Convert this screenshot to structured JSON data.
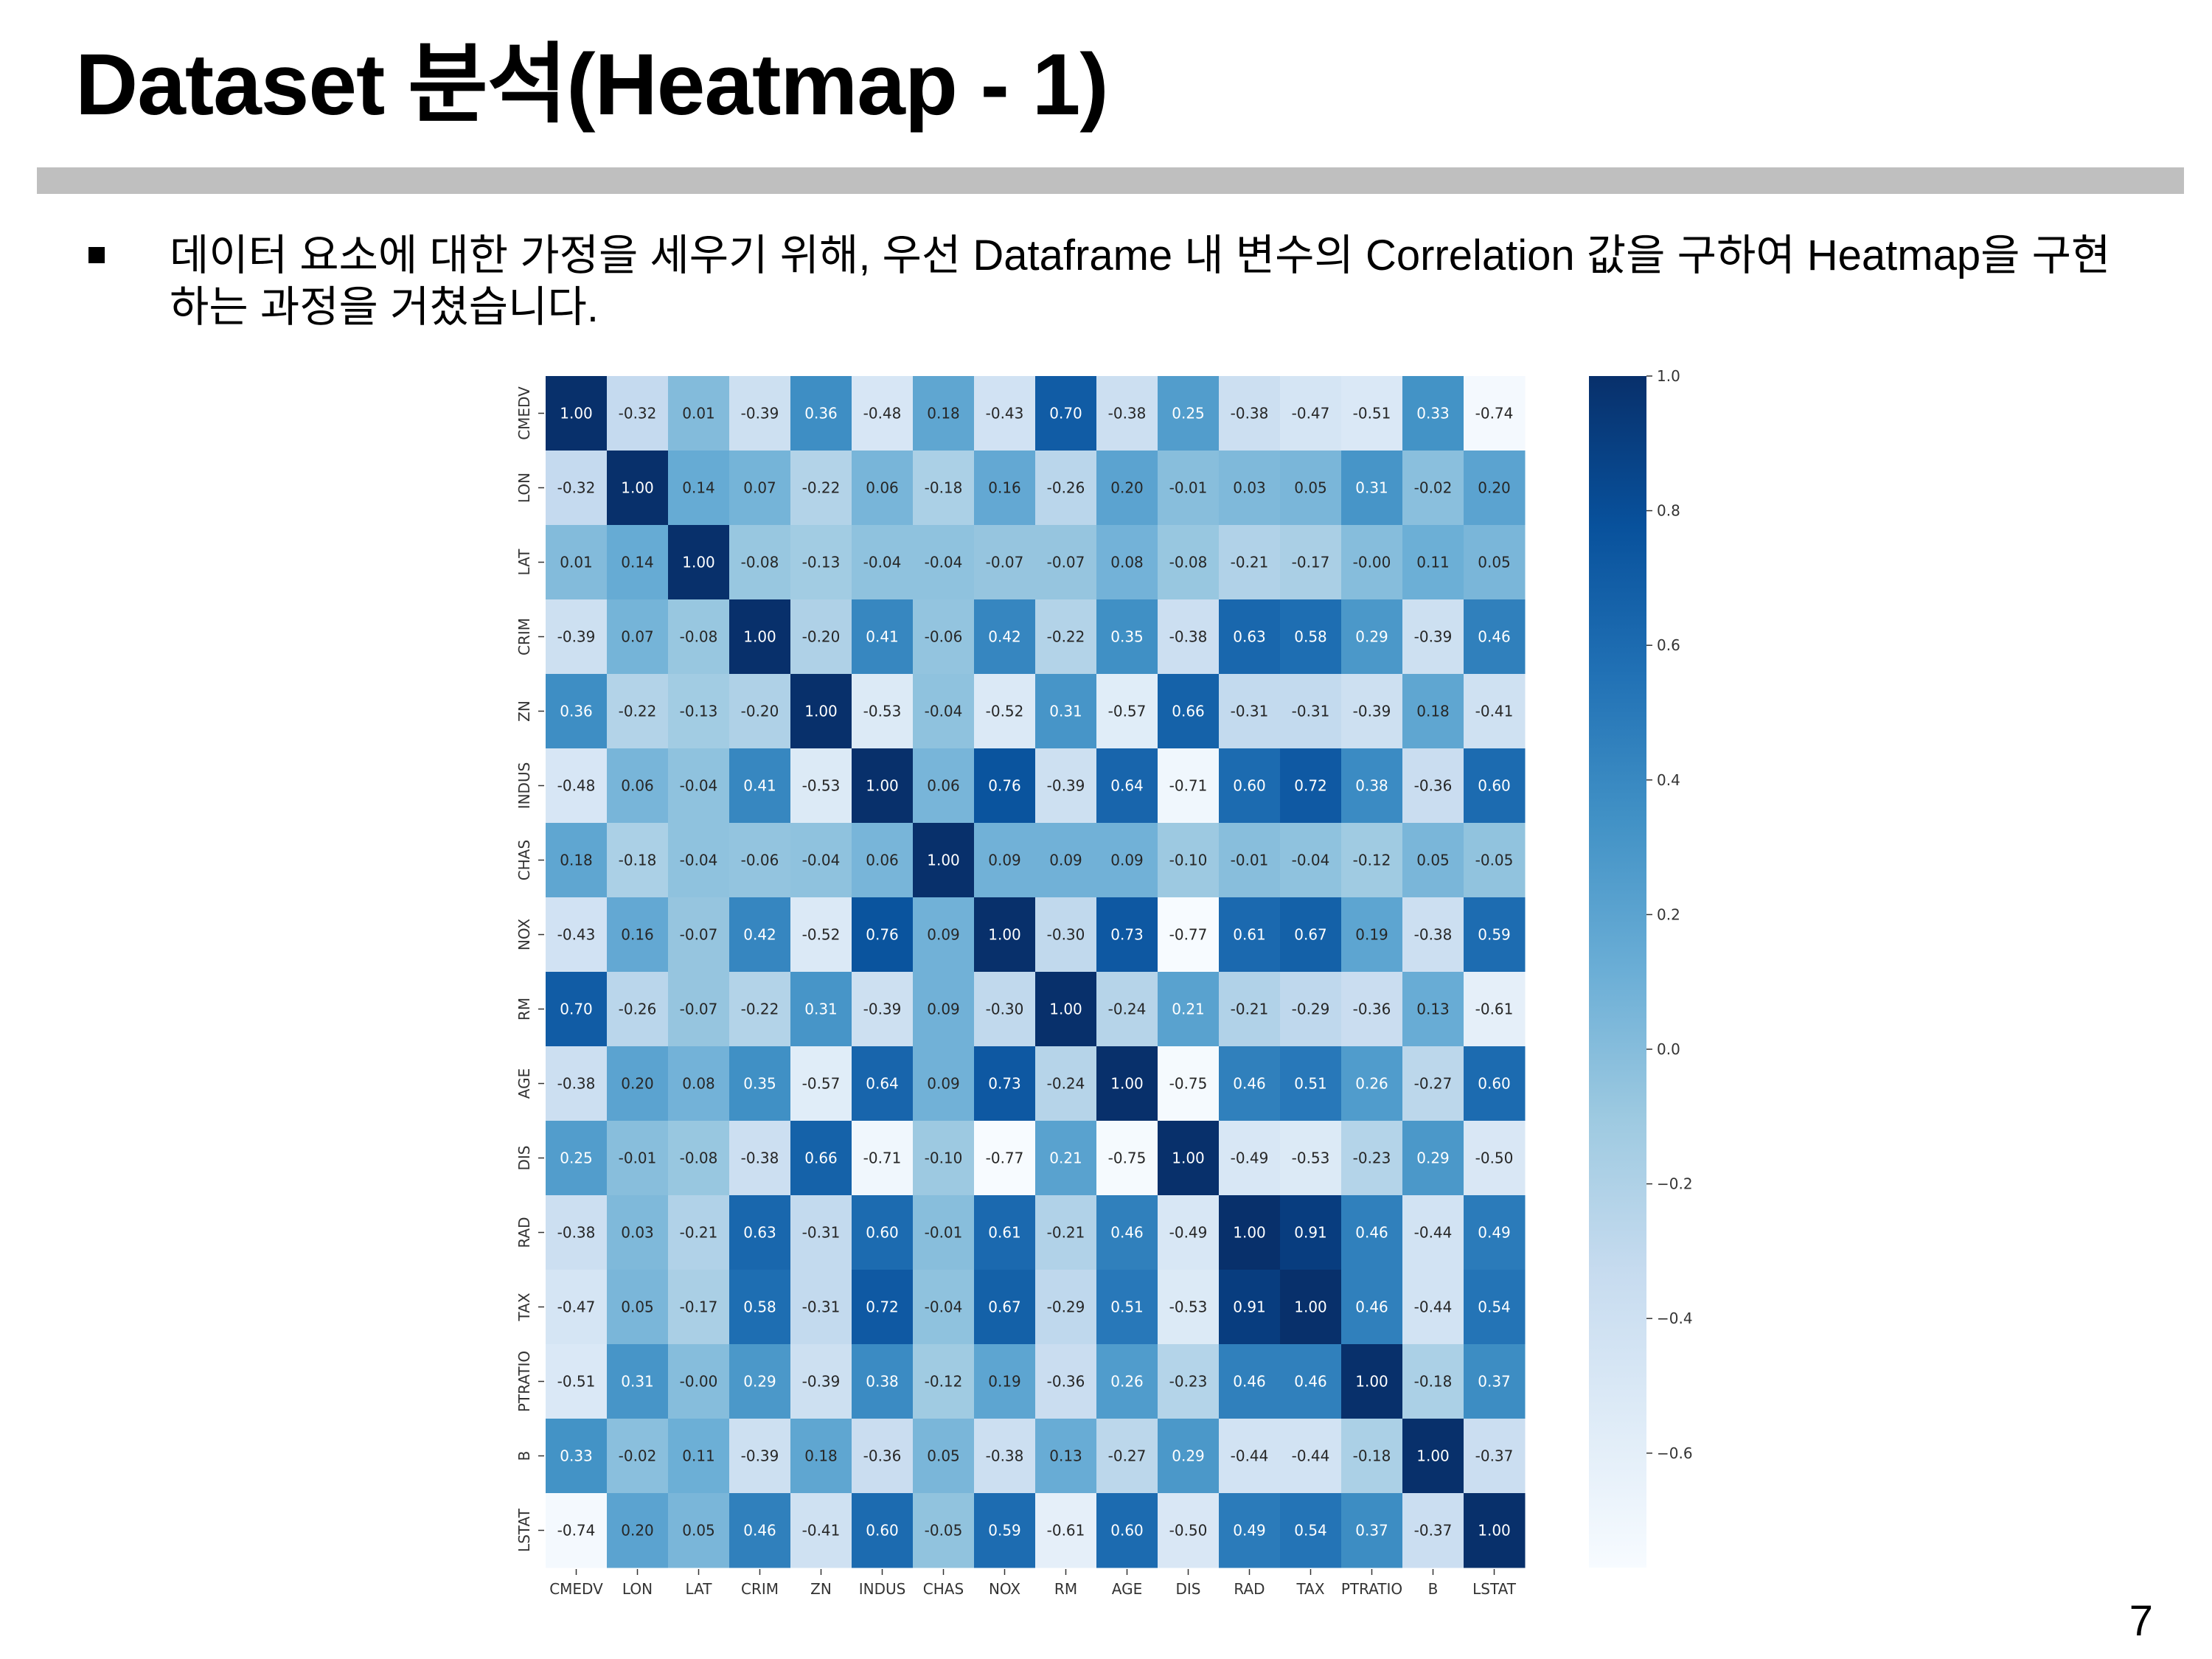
{
  "slide": {
    "title": "Dataset 분석(Heatmap - 1)",
    "bullet": "데이터 요소에 대한 가정을 세우기 위해, 우선 Dataframe 내 변수의 Correlation 값을 구하여 Heatmap을 구현하는 과정을 거쳤습니다.",
    "page_number": "7"
  },
  "chart_data": {
    "type": "heatmap",
    "variables": [
      "CMEDV",
      "LON",
      "LAT",
      "CRIM",
      "ZN",
      "INDUS",
      "CHAS",
      "NOX",
      "RM",
      "AGE",
      "DIS",
      "RAD",
      "TAX",
      "PTRATIO",
      "B",
      "LSTAT"
    ],
    "matrix": [
      [
        1.0,
        -0.32,
        0.01,
        -0.39,
        0.36,
        -0.48,
        0.18,
        -0.43,
        0.7,
        -0.38,
        0.25,
        -0.38,
        -0.47,
        -0.51,
        0.33,
        -0.74
      ],
      [
        -0.32,
        1.0,
        0.14,
        0.07,
        -0.22,
        0.06,
        -0.18,
        0.16,
        -0.26,
        0.2,
        -0.01,
        0.03,
        0.05,
        0.31,
        -0.02,
        0.2
      ],
      [
        0.01,
        0.14,
        1.0,
        -0.08,
        -0.13,
        -0.04,
        -0.04,
        -0.07,
        -0.07,
        0.08,
        -0.08,
        -0.21,
        -0.17,
        -0.0,
        0.11,
        0.05
      ],
      [
        -0.39,
        0.07,
        -0.08,
        1.0,
        -0.2,
        0.41,
        -0.06,
        0.42,
        -0.22,
        0.35,
        -0.38,
        0.63,
        0.58,
        0.29,
        -0.39,
        0.46
      ],
      [
        0.36,
        -0.22,
        -0.13,
        -0.2,
        1.0,
        -0.53,
        -0.04,
        -0.52,
        0.31,
        -0.57,
        0.66,
        -0.31,
        -0.31,
        -0.39,
        0.18,
        -0.41
      ],
      [
        -0.48,
        0.06,
        -0.04,
        0.41,
        -0.53,
        1.0,
        0.06,
        0.76,
        -0.39,
        0.64,
        -0.71,
        0.6,
        0.72,
        0.38,
        -0.36,
        0.6
      ],
      [
        0.18,
        -0.18,
        -0.04,
        -0.06,
        -0.04,
        0.06,
        1.0,
        0.09,
        0.09,
        0.09,
        -0.1,
        -0.01,
        -0.04,
        -0.12,
        0.05,
        -0.05
      ],
      [
        -0.43,
        0.16,
        -0.07,
        0.42,
        -0.52,
        0.76,
        0.09,
        1.0,
        -0.3,
        0.73,
        -0.77,
        0.61,
        0.67,
        0.19,
        -0.38,
        0.59
      ],
      [
        0.7,
        -0.26,
        -0.07,
        -0.22,
        0.31,
        -0.39,
        0.09,
        -0.3,
        1.0,
        -0.24,
        0.21,
        -0.21,
        -0.29,
        -0.36,
        0.13,
        -0.61
      ],
      [
        -0.38,
        0.2,
        0.08,
        0.35,
        -0.57,
        0.64,
        0.09,
        0.73,
        -0.24,
        1.0,
        -0.75,
        0.46,
        0.51,
        0.26,
        -0.27,
        0.6
      ],
      [
        0.25,
        -0.01,
        -0.08,
        -0.38,
        0.66,
        -0.71,
        -0.1,
        -0.77,
        0.21,
        -0.75,
        1.0,
        -0.49,
        -0.53,
        -0.23,
        0.29,
        -0.5
      ],
      [
        -0.38,
        0.03,
        -0.21,
        0.63,
        -0.31,
        0.6,
        -0.01,
        0.61,
        -0.21,
        0.46,
        -0.49,
        1.0,
        0.91,
        0.46,
        -0.44,
        0.49
      ],
      [
        -0.47,
        0.05,
        -0.17,
        0.58,
        -0.31,
        0.72,
        -0.04,
        0.67,
        -0.29,
        0.51,
        -0.53,
        0.91,
        1.0,
        0.46,
        -0.44,
        0.54
      ],
      [
        -0.51,
        0.31,
        -0.0,
        0.29,
        -0.39,
        0.38,
        -0.12,
        0.19,
        -0.36,
        0.26,
        -0.23,
        0.46,
        0.46,
        1.0,
        -0.18,
        0.37
      ],
      [
        0.33,
        -0.02,
        0.11,
        -0.39,
        0.18,
        -0.36,
        0.05,
        -0.38,
        0.13,
        -0.27,
        0.29,
        -0.44,
        -0.44,
        -0.18,
        1.0,
        -0.37
      ],
      [
        -0.74,
        0.2,
        0.05,
        0.46,
        -0.41,
        0.6,
        -0.05,
        0.59,
        -0.61,
        0.6,
        -0.5,
        0.49,
        0.54,
        0.37,
        -0.37,
        1.0
      ]
    ],
    "value_range": [
      -0.77,
      1.0
    ],
    "colormap": "Blues",
    "colorbar_ticks": [
      1.0,
      0.8,
      0.6,
      0.4,
      0.2,
      0.0,
      -0.2,
      -0.4,
      -0.6
    ],
    "colorbar_tick_labels": [
      "1.0",
      "0.8",
      "0.6",
      "0.4",
      "0.2",
      "0.0",
      "−0.2",
      "−0.4",
      "−0.6"
    ],
    "annotation_format": "2 decimals"
  }
}
